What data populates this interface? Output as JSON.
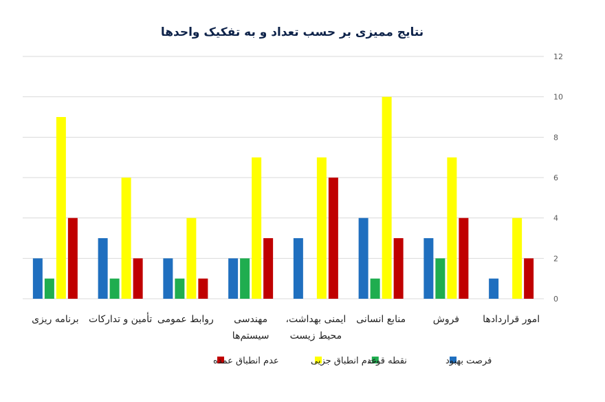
{
  "chart_data": {
    "type": "bar",
    "title": "نتایج ممیزی بر حسب تعداد و به تفکیک واحدها",
    "xlabel": "",
    "ylabel": "",
    "ylim": [
      0,
      12
    ],
    "yticks": [
      0,
      2,
      4,
      6,
      8,
      10,
      12
    ],
    "grid": true,
    "y_axis_side": "right",
    "legend_position": "bottom",
    "categories": [
      [
        "برنامه ریزی"
      ],
      [
        "تأمین و تدارکات"
      ],
      [
        "روابط عمومی"
      ],
      [
        "مهندسی",
        "سیستم‌ها"
      ],
      [
        "ایمنی بهداشت،",
        "محیط زیست"
      ],
      [
        "منابع انسانی"
      ],
      [
        "فروش"
      ],
      [
        "امور قراردادها"
      ]
    ],
    "series": [
      {
        "name": "فرصت بهبود",
        "color": "#1f6fbf",
        "values": [
          2,
          3,
          2,
          2,
          3,
          4,
          3,
          1
        ]
      },
      {
        "name": "نقطه قوت",
        "color": "#1fad4f",
        "values": [
          1,
          1,
          1,
          2,
          0,
          1,
          2,
          0
        ]
      },
      {
        "name": "عدم انطباق جزیی",
        "color": "#ffff00",
        "values": [
          9,
          6,
          4,
          7,
          7,
          10,
          7,
          4
        ]
      },
      {
        "name": "عدم انطباق عمده",
        "color": "#c00000",
        "values": [
          4,
          2,
          1,
          3,
          6,
          3,
          4,
          2
        ]
      }
    ]
  }
}
